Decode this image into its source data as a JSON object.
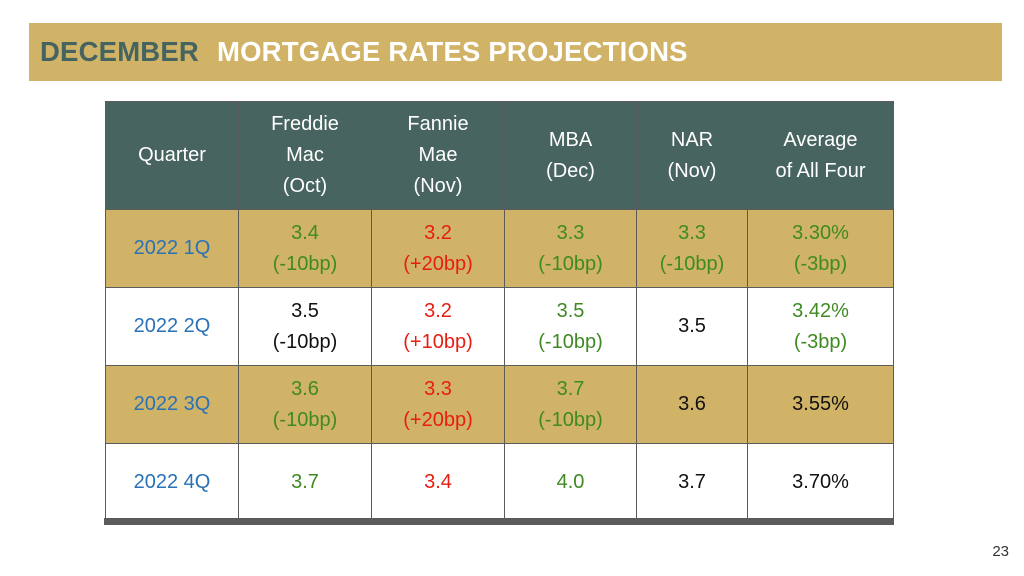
{
  "title": {
    "part1": "DECEMBER",
    "part2": "MORTGAGE RATES PROJECTIONS"
  },
  "table": {
    "headers": [
      [
        "Quarter"
      ],
      [
        "Freddie",
        "Mac",
        "(Oct)"
      ],
      [
        "Fannie",
        "Mae",
        "(Nov)"
      ],
      [
        "MBA",
        "(Dec)"
      ],
      [
        "NAR",
        "(Nov)"
      ],
      [
        "Average",
        "of All Four"
      ]
    ],
    "rows": [
      {
        "quarter": "2022 1Q",
        "freddie": {
          "value": "3.4",
          "change": "(-10bp)"
        },
        "fannie": {
          "value": "3.2",
          "change": "(+20bp)"
        },
        "mba": {
          "value": "3.3",
          "change": "(-10bp)"
        },
        "nar": {
          "value": "3.3",
          "change": "(-10bp)"
        },
        "average": {
          "value": "3.30%",
          "change": "(-3bp)"
        }
      },
      {
        "quarter": "2022 2Q",
        "freddie": {
          "value": "3.5",
          "change": "(-10bp)"
        },
        "fannie": {
          "value": "3.2",
          "change": "(+10bp)"
        },
        "mba": {
          "value": "3.5",
          "change": "(-10bp)"
        },
        "nar": {
          "value": "3.5"
        },
        "average": {
          "value": "3.42%",
          "change": "(-3bp)"
        }
      },
      {
        "quarter": "2022 3Q",
        "freddie": {
          "value": "3.6",
          "change": "(-10bp)"
        },
        "fannie": {
          "value": "3.3",
          "change": "(+20bp)"
        },
        "mba": {
          "value": "3.7",
          "change": "(-10bp)"
        },
        "nar": {
          "value": "3.6"
        },
        "average": {
          "value": "3.55%"
        }
      },
      {
        "quarter": "2022 4Q",
        "freddie": {
          "value": "3.7"
        },
        "fannie": {
          "value": "3.4"
        },
        "mba": {
          "value": "4.0"
        },
        "nar": {
          "value": "3.7"
        },
        "average": {
          "value": "3.70%"
        }
      }
    ]
  },
  "colors": {
    "banner_gold": "#d0b366",
    "header_teal": "#476460",
    "quarter_blue": "#2a72b7",
    "decrease_green": "#3f8a22",
    "increase_red": "#e61e12"
  },
  "page_number": "23"
}
